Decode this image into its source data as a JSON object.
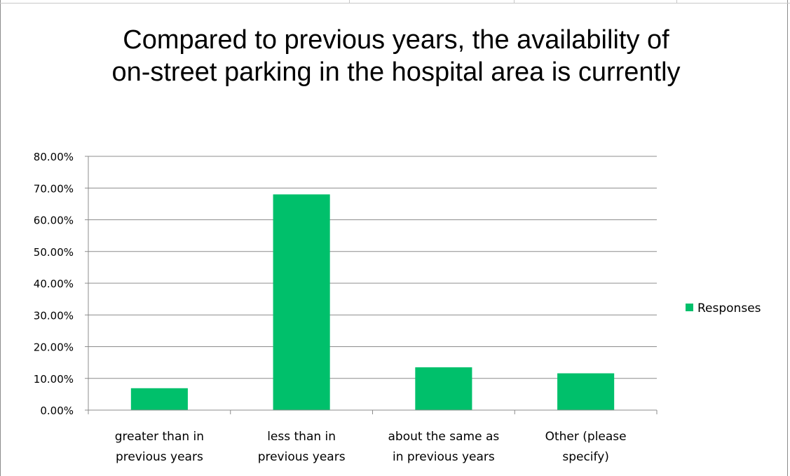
{
  "chart_data": {
    "type": "bar",
    "title": "Compared to previous years, the availability of on-street parking in the hospital area is currently",
    "categories": [
      [
        "greater than in",
        "previous years"
      ],
      [
        "less than in",
        "previous years"
      ],
      [
        "about the same as",
        "in previous years"
      ],
      [
        "Other (please",
        "specify)"
      ]
    ],
    "series": [
      {
        "name": "Responses",
        "values": [
          6.9,
          68.0,
          13.5,
          11.6
        ],
        "color": "#00c06b"
      }
    ],
    "ylim": [
      0,
      80
    ],
    "yticks": [
      "0.00%",
      "10.00%",
      "20.00%",
      "30.00%",
      "40.00%",
      "50.00%",
      "60.00%",
      "70.00%",
      "80.00%"
    ],
    "grid": true,
    "legend_position": "right"
  }
}
